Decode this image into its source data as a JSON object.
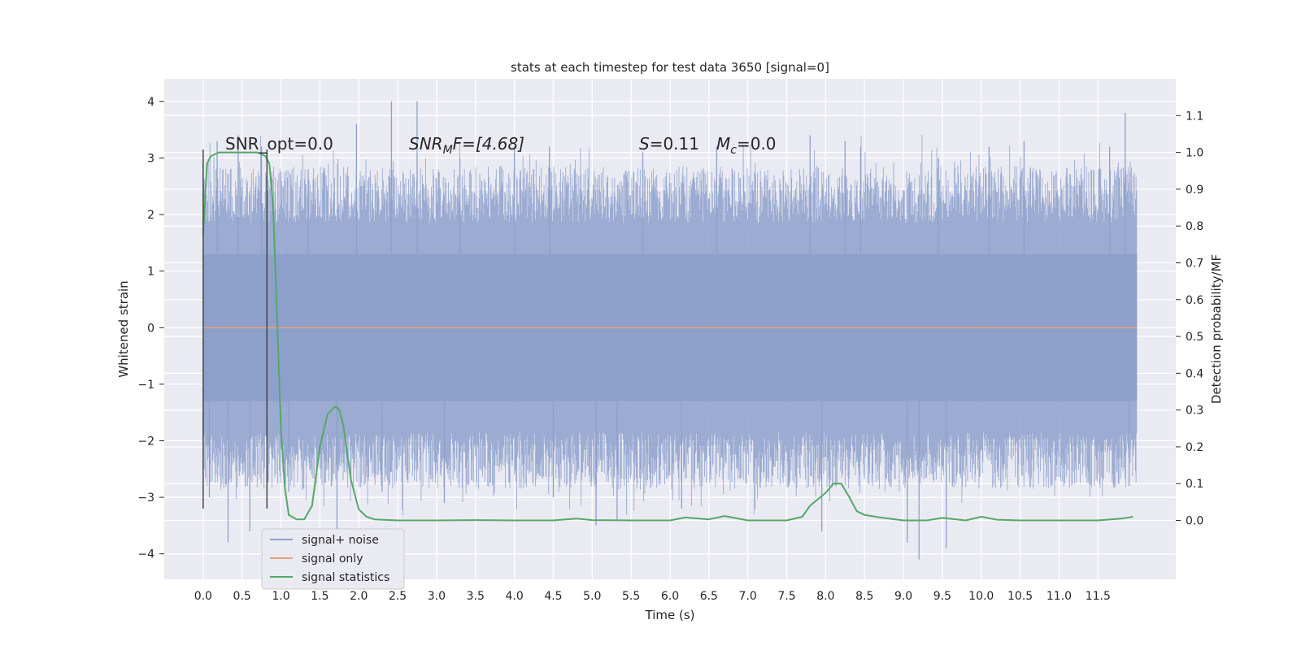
{
  "chart_data": {
    "type": "line",
    "title": "stats at each timestep for test data 3650 [signal=0]",
    "xlabel": "Time (s)",
    "ylabel": "Whitened strain",
    "y2label": "Detection probability/MF",
    "xlim": [
      -0.5,
      12.5
    ],
    "ylim": [
      -4.45,
      4.4
    ],
    "y2lim": [
      -0.16,
      1.2
    ],
    "xticks": [
      "0.0",
      "0.5",
      "1.0",
      "1.5",
      "2.0",
      "2.5",
      "3.0",
      "3.5",
      "4.0",
      "4.5",
      "5.0",
      "5.5",
      "6.0",
      "6.5",
      "7.0",
      "7.5",
      "8.0",
      "8.5",
      "9.0",
      "9.5",
      "10.0",
      "10.5",
      "11.0",
      "11.5"
    ],
    "yticks": [
      "4",
      "3",
      "2",
      "1",
      "0",
      "−1",
      "−2",
      "−3",
      "−4"
    ],
    "y2ticks": [
      "1.1",
      "1.0",
      "0.9",
      "0.8",
      "0.7",
      "0.6",
      "0.5",
      "0.4",
      "0.3",
      "0.2",
      "0.1",
      "0.0"
    ],
    "grid": true,
    "legend_position": "lower-left",
    "noise_band": {
      "x_start": 0.0,
      "x_end": 12.0,
      "ymin": -1.3,
      "ymax": 1.3
    },
    "noise_spikes": [
      {
        "x": 0.08,
        "y": -3.0
      },
      {
        "x": 0.18,
        "y": 3.3
      },
      {
        "x": 0.32,
        "y": -3.8
      },
      {
        "x": 0.45,
        "y": 3.4
      },
      {
        "x": 0.6,
        "y": -3.6
      },
      {
        "x": 0.75,
        "y": 3.2
      },
      {
        "x": 1.1,
        "y": -2.9
      },
      {
        "x": 1.35,
        "y": 2.8
      },
      {
        "x": 1.72,
        "y": -3.6
      },
      {
        "x": 1.97,
        "y": 3.6
      },
      {
        "x": 2.3,
        "y": -2.9
      },
      {
        "x": 2.42,
        "y": 4.0
      },
      {
        "x": 2.75,
        "y": 4.0
      },
      {
        "x": 3.1,
        "y": -3.1
      },
      {
        "x": 3.3,
        "y": 3.0
      },
      {
        "x": 4.0,
        "y": 3.2
      },
      {
        "x": 4.45,
        "y": 3.2
      },
      {
        "x": 4.5,
        "y": -3.0
      },
      {
        "x": 5.05,
        "y": -3.5
      },
      {
        "x": 5.32,
        "y": -3.4
      },
      {
        "x": 5.65,
        "y": 3.1
      },
      {
        "x": 6.15,
        "y": -3.2
      },
      {
        "x": 6.6,
        "y": 3.2
      },
      {
        "x": 7.8,
        "y": 3.4
      },
      {
        "x": 7.95,
        "y": -3.6
      },
      {
        "x": 8.25,
        "y": 3.3
      },
      {
        "x": 8.45,
        "y": 3.2
      },
      {
        "x": 9.05,
        "y": -3.8
      },
      {
        "x": 9.2,
        "y": -4.1
      },
      {
        "x": 9.45,
        "y": 3.0
      },
      {
        "x": 9.55,
        "y": -3.9
      },
      {
        "x": 10.1,
        "y": 3.2
      },
      {
        "x": 10.55,
        "y": 3.3
      },
      {
        "x": 11.65,
        "y": 3.2
      },
      {
        "x": 11.85,
        "y": 3.8
      },
      {
        "x": 11.9,
        "y": -2.8
      }
    ],
    "vlines": [
      {
        "x": 0.0,
        "ymin": -3.2,
        "ymax": 3.15
      },
      {
        "x": 0.82,
        "ymin": -3.2,
        "ymax": 3.15
      }
    ],
    "series": [
      {
        "name": "signal+ noise",
        "color": "#8da0cb",
        "axis": "left",
        "x": [
          0.0,
          12.0
        ],
        "y": [
          0.0,
          0.0
        ]
      },
      {
        "name": "signal only",
        "color": "#e8a07a",
        "axis": "left",
        "x": [
          0.0,
          12.0
        ],
        "y": [
          0.0,
          0.0
        ]
      },
      {
        "name": "signal statistics",
        "color": "#55a868",
        "axis": "right",
        "x": [
          0.0,
          0.05,
          0.1,
          0.2,
          0.3,
          0.4,
          0.5,
          0.6,
          0.7,
          0.8,
          0.85,
          0.9,
          0.95,
          1.0,
          1.05,
          1.1,
          1.2,
          1.3,
          1.4,
          1.5,
          1.6,
          1.7,
          1.75,
          1.8,
          1.9,
          2.0,
          2.1,
          2.2,
          2.5,
          3.0,
          3.5,
          4.0,
          4.5,
          4.8,
          5.0,
          5.5,
          6.0,
          6.2,
          6.5,
          6.7,
          7.0,
          7.5,
          7.7,
          7.8,
          8.0,
          8.1,
          8.2,
          8.3,
          8.4,
          8.5,
          8.7,
          9.0,
          9.3,
          9.5,
          9.8,
          10.0,
          10.2,
          10.5,
          11.0,
          11.5,
          11.8,
          11.95
        ],
        "y": [
          0.78,
          0.97,
          0.99,
          1.0,
          1.0,
          1.0,
          1.0,
          1.0,
          1.0,
          0.99,
          0.97,
          0.85,
          0.55,
          0.25,
          0.09,
          0.015,
          0.003,
          0.003,
          0.04,
          0.2,
          0.29,
          0.31,
          0.3,
          0.26,
          0.11,
          0.03,
          0.01,
          0.003,
          0.0,
          0.0,
          0.001,
          0.0,
          0.0,
          0.005,
          0.001,
          0.0,
          0.0,
          0.008,
          0.003,
          0.012,
          0.0,
          0.0,
          0.01,
          0.04,
          0.075,
          0.1,
          0.1,
          0.065,
          0.025,
          0.015,
          0.008,
          0.0,
          0.0,
          0.007,
          0.0,
          0.01,
          0.002,
          0.0,
          0.0,
          0.0,
          0.005,
          0.01
        ]
      }
    ],
    "annotations": {
      "snr_opt": "SNR_opt=0.0",
      "snr_mf_main": "SNR",
      "snr_mf_sub": "M",
      "snr_mf_rest": "F=[4.68]",
      "s_main": "S",
      "s_rest": "=0.11",
      "mc_main": "M",
      "mc_sub": "c",
      "mc_rest": "=0.0"
    },
    "style": {
      "plot_bg": "#eaeaf2",
      "grid_color": "#ffffff",
      "noise_color": "#8da0cb",
      "signal_color": "#e8a07a",
      "stat_color": "#55a868",
      "vline_color": "#3d3d3d"
    }
  }
}
